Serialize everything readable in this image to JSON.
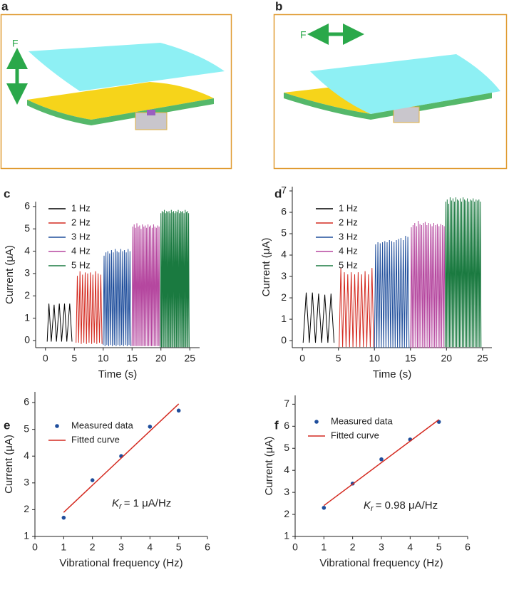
{
  "figure": {
    "panels": [
      {
        "label": "a",
        "force_label": "F"
      },
      {
        "label": "b",
        "force_label": "F"
      }
    ]
  },
  "chart_data": [
    {
      "type": "line",
      "panel_label": "c",
      "xlabel": "Time (s)",
      "ylabel": "Current (μA)",
      "xlim": [
        -1.7,
        26.7
      ],
      "ylim": [
        -0.32,
        6.22
      ],
      "xticks": [
        0,
        5,
        10,
        15,
        20,
        25
      ],
      "yticks": [
        0,
        1,
        2,
        3,
        4,
        5,
        6
      ],
      "series": [
        {
          "name": "1 Hz",
          "color": "#000000",
          "x": [
            0.3,
            0.6,
            1.0,
            1.5,
            1.9,
            2.4,
            2.8,
            3.3,
            3.7,
            4.2,
            4.6
          ],
          "values": [
            -0.05,
            1.65,
            -0.05,
            1.6,
            -0.05,
            1.65,
            -0.05,
            1.65,
            -0.05,
            1.65,
            -0.05
          ]
        },
        {
          "name": "2 Hz",
          "color": "#d42a20",
          "x": [
            5.3,
            5.52,
            5.75,
            5.98,
            6.2,
            6.42,
            6.65,
            6.88,
            7.1,
            7.32,
            7.55,
            7.78,
            8.0,
            8.22,
            8.45,
            8.68,
            8.9,
            9.12,
            9.35,
            9.58,
            9.8
          ],
          "values": [
            -0.1,
            2.9,
            -0.1,
            3.1,
            -0.15,
            2.95,
            -0.1,
            3.05,
            -0.15,
            3.0,
            -0.1,
            3.05,
            -0.15,
            2.95,
            -0.1,
            3.1,
            -0.15,
            3.0,
            -0.1,
            2.95,
            -0.15
          ]
        },
        {
          "name": "3 Hz",
          "color": "#1f4e9c",
          "x": [
            10,
            10.16,
            10.32,
            10.48,
            10.64,
            10.8,
            10.96,
            11.12,
            11.28,
            11.44,
            11.6,
            11.76,
            11.92,
            12.08,
            12.24,
            12.4,
            12.56,
            12.72,
            12.88,
            13.04,
            13.2,
            13.36,
            13.52,
            13.68,
            13.84,
            14,
            14.16,
            14.32,
            14.48,
            14.64,
            14.8
          ],
          "values": [
            -0.2,
            3.8,
            -0.25,
            3.95,
            -0.2,
            4.0,
            -0.25,
            3.9,
            -0.2,
            4.05,
            -0.25,
            3.95,
            -0.2,
            4.1,
            -0.25,
            4.0,
            -0.2,
            3.95,
            -0.25,
            4.1,
            -0.2,
            4.0,
            -0.25,
            4.05,
            -0.2,
            3.95,
            -0.25,
            4.1,
            -0.2,
            4.0,
            -0.25
          ]
        },
        {
          "name": "4 Hz",
          "color": "#b5479f",
          "x": [
            15,
            15.12,
            15.24,
            15.36,
            15.48,
            15.6,
            15.72,
            15.84,
            15.96,
            16.08,
            16.2,
            16.32,
            16.44,
            16.56,
            16.68,
            16.8,
            16.92,
            17.04,
            17.16,
            17.28,
            17.4,
            17.52,
            17.64,
            17.76,
            17.88,
            18,
            18.12,
            18.24,
            18.36,
            18.48,
            18.6,
            18.72,
            18.84,
            18.96,
            19.08,
            19.2,
            19.32,
            19.44,
            19.56,
            19.68,
            19.8
          ],
          "values": [
            -0.25,
            5.1,
            -0.25,
            5.2,
            -0.25,
            5.05,
            -0.25,
            5.25,
            -0.25,
            5.1,
            -0.25,
            5.15,
            -0.25,
            5.0,
            -0.25,
            5.2,
            -0.25,
            5.1,
            -0.25,
            5.15,
            -0.25,
            5.05,
            -0.25,
            5.2,
            -0.25,
            5.1,
            -0.25,
            5.15,
            -0.25,
            5.05,
            -0.25,
            5.2,
            -0.25,
            5.1,
            -0.25,
            5.05,
            -0.25,
            5.15,
            -0.25,
            5.1,
            -0.25
          ]
        },
        {
          "name": "5 Hz",
          "color": "#1a7a40",
          "x": [
            19.9,
            20,
            20.1,
            20.2,
            20.3,
            20.4,
            20.5,
            20.6,
            20.7,
            20.8,
            20.9,
            21,
            21.1,
            21.2,
            21.3,
            21.4,
            21.5,
            21.6,
            21.7,
            21.8,
            21.9,
            22,
            22.1,
            22.2,
            22.3,
            22.4,
            22.5,
            22.6,
            22.7,
            22.8,
            22.9,
            23,
            23.1,
            23.2,
            23.3,
            23.4,
            23.5,
            23.6,
            23.7,
            23.8,
            23.9,
            24,
            24.1,
            24.2,
            24.3,
            24.4,
            24.5,
            24.6,
            24.7,
            24.8,
            24.9
          ],
          "values": [
            -0.3,
            5.7,
            -0.3,
            5.8,
            -0.3,
            5.75,
            -0.3,
            5.85,
            -0.3,
            5.7,
            -0.3,
            5.8,
            -0.3,
            5.75,
            -0.3,
            5.8,
            -0.3,
            5.7,
            -0.3,
            5.85,
            -0.3,
            5.75,
            -0.3,
            5.8,
            -0.3,
            5.7,
            -0.3,
            5.8,
            -0.3,
            5.75,
            -0.3,
            5.85,
            -0.3,
            5.7,
            -0.3,
            5.8,
            -0.3,
            5.75,
            -0.3,
            5.8,
            -0.3,
            5.7,
            -0.3,
            5.85,
            -0.3,
            5.75,
            -0.3,
            5.8,
            -0.3,
            5.7,
            -0.3
          ]
        }
      ]
    },
    {
      "type": "line",
      "panel_label": "d",
      "xlabel": "Time (s)",
      "ylabel": "Current (μA)",
      "xlim": [
        -1.4,
        26.3
      ],
      "ylim": [
        -0.33,
        7.2
      ],
      "xticks": [
        0,
        5,
        10,
        15,
        20,
        25
      ],
      "yticks": [
        0,
        1,
        2,
        3,
        4,
        5,
        6,
        7
      ],
      "series": [
        {
          "name": "1 Hz",
          "color": "#000000",
          "x": [
            0.1,
            0.53,
            0.96,
            1.39,
            1.82,
            2.25,
            2.68,
            3.11,
            3.54,
            3.97,
            4.4
          ],
          "values": [
            -0.1,
            2.25,
            -0.1,
            2.25,
            -0.1,
            2.2,
            -0.1,
            2.15,
            -0.1,
            2.2,
            -0.1
          ]
        },
        {
          "name": "2 Hz",
          "color": "#d42a20",
          "x": [
            5.1,
            5.34,
            5.58,
            5.82,
            6.06,
            6.3,
            6.54,
            6.78,
            7.02,
            7.26,
            7.5,
            7.74,
            7.98,
            8.22,
            8.46,
            8.7,
            8.94,
            9.18,
            9.42,
            9.66,
            9.9
          ],
          "values": [
            -0.3,
            3.4,
            -0.3,
            3.2,
            -0.3,
            3.1,
            -0.3,
            3.2,
            -0.3,
            3.1,
            -0.3,
            3.2,
            -0.3,
            3.1,
            -0.3,
            3.25,
            -0.3,
            3.1,
            -0.3,
            3.4,
            -0.3
          ]
        },
        {
          "name": "3 Hz",
          "color": "#1f4e9c",
          "x": [
            10,
            10.16,
            10.32,
            10.48,
            10.64,
            10.8,
            10.96,
            11.12,
            11.28,
            11.44,
            11.6,
            11.76,
            11.92,
            12.08,
            12.24,
            12.4,
            12.56,
            12.72,
            12.88,
            13.04,
            13.2,
            13.36,
            13.52,
            13.68,
            13.84,
            14,
            14.16,
            14.32,
            14.48,
            14.64,
            14.8
          ],
          "values": [
            -0.35,
            4.5,
            -0.35,
            4.6,
            -0.35,
            4.55,
            -0.35,
            4.6,
            -0.35,
            4.65,
            -0.35,
            4.6,
            -0.35,
            4.7,
            -0.35,
            4.65,
            -0.35,
            4.6,
            -0.35,
            4.7,
            -0.35,
            4.75,
            -0.35,
            4.8,
            -0.35,
            4.7,
            -0.35,
            4.9,
            -0.35,
            4.85,
            -0.35
          ]
        },
        {
          "name": "4 Hz",
          "color": "#b5479f",
          "x": [
            15,
            15.12,
            15.24,
            15.36,
            15.48,
            15.6,
            15.72,
            15.84,
            15.96,
            16.08,
            16.2,
            16.32,
            16.44,
            16.56,
            16.68,
            16.8,
            16.92,
            17.04,
            17.16,
            17.28,
            17.4,
            17.52,
            17.64,
            17.76,
            17.88,
            18,
            18.12,
            18.24,
            18.36,
            18.48,
            18.6,
            18.72,
            18.84,
            18.96,
            19.08,
            19.2,
            19.32,
            19.44,
            19.56,
            19.68,
            19.8
          ],
          "values": [
            -0.35,
            5.3,
            -0.35,
            5.4,
            -0.35,
            5.5,
            -0.35,
            5.35,
            -0.35,
            5.6,
            -0.35,
            5.45,
            -0.35,
            5.4,
            -0.35,
            5.5,
            -0.35,
            5.55,
            -0.35,
            5.4,
            -0.35,
            5.5,
            -0.35,
            5.45,
            -0.35,
            5.35,
            -0.35,
            5.5,
            -0.35,
            5.4,
            -0.35,
            5.45,
            -0.35,
            5.35,
            -0.35,
            5.45,
            -0.35,
            5.4,
            -0.35,
            5.35,
            -0.35
          ]
        },
        {
          "name": "5 Hz",
          "color": "#1a7a40",
          "x": [
            19.8,
            19.9,
            20,
            20.1,
            20.2,
            20.3,
            20.4,
            20.5,
            20.6,
            20.7,
            20.8,
            20.9,
            21,
            21.1,
            21.2,
            21.3,
            21.4,
            21.5,
            21.6,
            21.7,
            21.8,
            21.9,
            22,
            22.1,
            22.2,
            22.3,
            22.4,
            22.5,
            22.6,
            22.7,
            22.8,
            22.9,
            23,
            23.1,
            23.2,
            23.3,
            23.4,
            23.5,
            23.6,
            23.7,
            23.8,
            23.9,
            24,
            24.1,
            24.2,
            24.3,
            24.4,
            24.5,
            24.6,
            24.7,
            24.8
          ],
          "values": [
            -0.3,
            6.5,
            -0.3,
            6.6,
            -0.3,
            6.4,
            -0.3,
            6.7,
            -0.3,
            6.55,
            -0.3,
            6.65,
            -0.3,
            6.5,
            -0.3,
            6.7,
            -0.3,
            6.6,
            -0.3,
            6.55,
            -0.3,
            6.65,
            -0.3,
            6.5,
            -0.3,
            6.7,
            -0.3,
            6.6,
            -0.3,
            6.55,
            -0.3,
            6.65,
            -0.3,
            6.5,
            -0.3,
            6.6,
            -0.3,
            6.55,
            -0.3,
            6.65,
            -0.3,
            6.5,
            -0.3,
            6.6,
            -0.3,
            6.55,
            -0.3,
            6.6,
            -0.3,
            6.5,
            -0.3
          ]
        }
      ]
    },
    {
      "type": "scatter",
      "panel_label": "e",
      "xlabel": "Vibrational frequency (Hz)",
      "ylabel": "Current (μA)",
      "xlim": [
        0,
        6
      ],
      "ylim": [
        1,
        6.4
      ],
      "xticks": [
        0,
        1,
        2,
        3,
        4,
        5,
        6
      ],
      "yticks": [
        1,
        2,
        3,
        4,
        5,
        6
      ],
      "annotation": {
        "symbol": "K",
        "subscript": "r",
        "text": "= 1 μA/Hz"
      },
      "series": [
        {
          "name": "Measured data",
          "color": "#1f4e9c",
          "mode": "markers",
          "x": [
            1,
            2,
            3,
            4,
            5
          ],
          "values": [
            1.7,
            3.1,
            4.0,
            5.1,
            5.7
          ]
        },
        {
          "name": "Fitted curve",
          "color": "#d42a20",
          "mode": "line",
          "x": [
            1,
            5
          ],
          "values": [
            1.9,
            5.95
          ]
        }
      ]
    },
    {
      "type": "scatter",
      "panel_label": "f",
      "xlabel": "Vibrational frequency (Hz)",
      "ylabel": "Current (μA)",
      "xlim": [
        0,
        6
      ],
      "ylim": [
        1,
        7.4
      ],
      "xticks": [
        0,
        1,
        2,
        3,
        4,
        5,
        6
      ],
      "yticks": [
        1,
        2,
        3,
        4,
        5,
        6,
        7
      ],
      "annotation": {
        "symbol": "K",
        "subscript": "r",
        "text": "= 0.98 μA/Hz"
      },
      "series": [
        {
          "name": "Measured data",
          "color": "#1f4e9c",
          "mode": "markers",
          "x": [
            1,
            2,
            3,
            4,
            5
          ],
          "values": [
            2.3,
            3.4,
            4.5,
            5.4,
            6.2
          ]
        },
        {
          "name": "Fitted curve",
          "color": "#d42a20",
          "mode": "line",
          "x": [
            1,
            5
          ],
          "values": [
            2.4,
            6.3
          ]
        }
      ]
    }
  ]
}
